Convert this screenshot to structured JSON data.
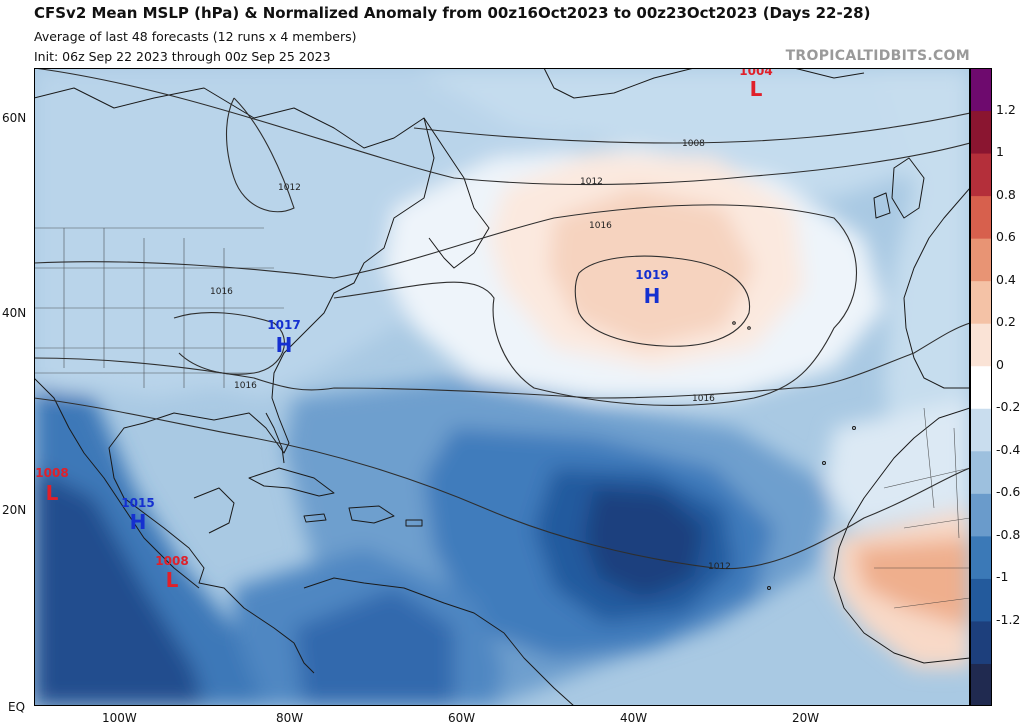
{
  "header": {
    "title": "CFSv2 Mean MSLP (hPa) & Normalized Anomaly from 00z16Oct2023 to 00z23Oct2023 (Days 22-28)",
    "subtitle": "Average of last 48 forecasts (12 runs x 4 members)",
    "init": "Init: 06z Sep 22 2023 through 00z Sep 25 2023",
    "watermark": "TROPICALTIDBITS.COM"
  },
  "axes": {
    "lat_labels": [
      "60N",
      "40N",
      "20N",
      "EQ"
    ],
    "lon_labels": [
      "100W",
      "80W",
      "60W",
      "40W",
      "20W"
    ]
  },
  "isobars": {
    "labels": [
      "1008",
      "1012",
      "1016",
      "1016",
      "1016",
      "1016",
      "1012",
      "1012"
    ]
  },
  "pressure_centers": [
    {
      "type": "L",
      "value": "1004",
      "color": "#e0202a"
    },
    {
      "type": "H",
      "value": "1019",
      "color": "#1530d0"
    },
    {
      "type": "H",
      "value": "1017",
      "color": "#1530d0"
    },
    {
      "type": "H",
      "value": "1015",
      "color": "#1530d0"
    },
    {
      "type": "L",
      "value": "1008",
      "color": "#e0202a"
    },
    {
      "type": "L",
      "value": "1008",
      "color": "#e0202a"
    }
  ],
  "colorbar": {
    "labels": [
      "1.2",
      "1",
      "0.8",
      "0.6",
      "0.4",
      "0.2",
      "0",
      "-0.2",
      "-0.4",
      "-0.6",
      "-0.8",
      "-1",
      "-1.2"
    ],
    "colors": [
      "#202a50",
      "#1d3f7c",
      "#235a9c",
      "#3b79b7",
      "#6a9bcb",
      "#9dc0de",
      "#c9ddee",
      "#ffffff",
      "#fae3d6",
      "#f4c2a6",
      "#e89474",
      "#d7604d",
      "#b42f3a",
      "#8a1530",
      "#6e0a6e"
    ]
  }
}
